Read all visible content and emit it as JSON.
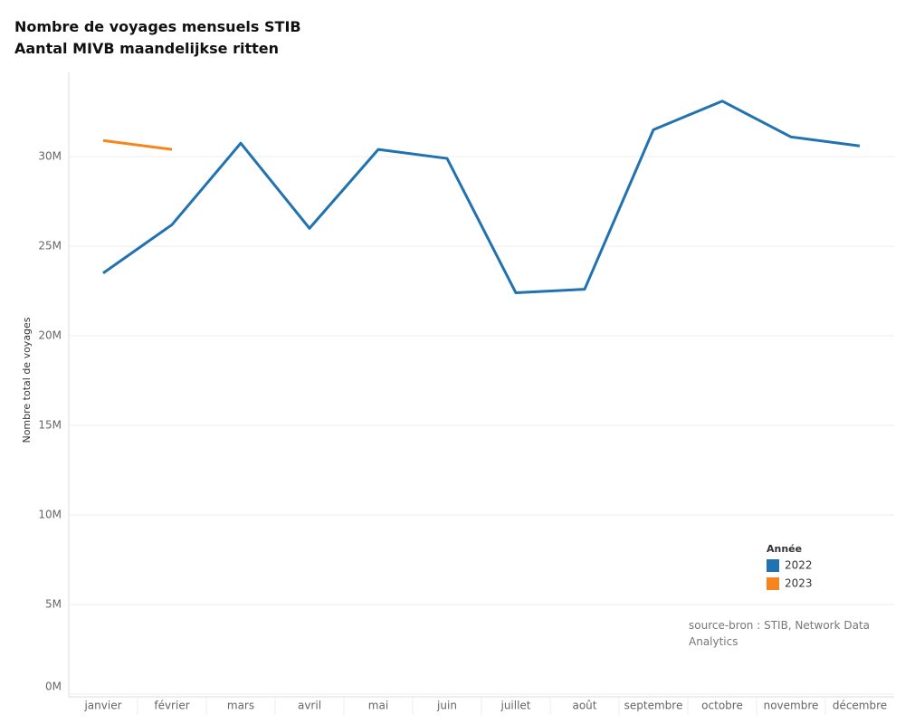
{
  "chart_data": {
    "type": "line",
    "title": "Nombre de voyages mensuels STIB",
    "subtitle": "Aantal MIVB maandelijkse ritten",
    "y_label": "Nombre total de voyages",
    "categories": [
      "janvier",
      "février",
      "mars",
      "avril",
      "mai",
      "juin",
      "juillet",
      "août",
      "septembre",
      "octobre",
      "novembre",
      "décembre"
    ],
    "series": [
      {
        "name": "2022",
        "color": "#2172b0",
        "values": [
          23500000,
          26200000,
          30750000,
          26000000,
          30400000,
          29900000,
          22400000,
          22600000,
          31500000,
          33100000,
          31100000,
          30600000
        ]
      },
      {
        "name": "2023",
        "color": "#f7851d",
        "values": [
          30900000,
          30400000,
          null,
          null,
          null,
          null,
          null,
          null,
          null,
          null,
          null,
          null
        ]
      }
    ],
    "ylim": [
      0,
      34500000
    ],
    "yticks": [
      {
        "value": 0,
        "label": "0M"
      },
      {
        "value": 5000000,
        "label": "5M"
      },
      {
        "value": 10000000,
        "label": "10M"
      },
      {
        "value": 15000000,
        "label": "15M"
      },
      {
        "value": 20000000,
        "label": "20M"
      },
      {
        "value": 25000000,
        "label": "25M"
      },
      {
        "value": 30000000,
        "label": "30M"
      }
    ],
    "grid": true,
    "legend_title": "Année",
    "legend_position": "bottom-right",
    "source": "source-bron : STIB, Network Data Analytics"
  }
}
